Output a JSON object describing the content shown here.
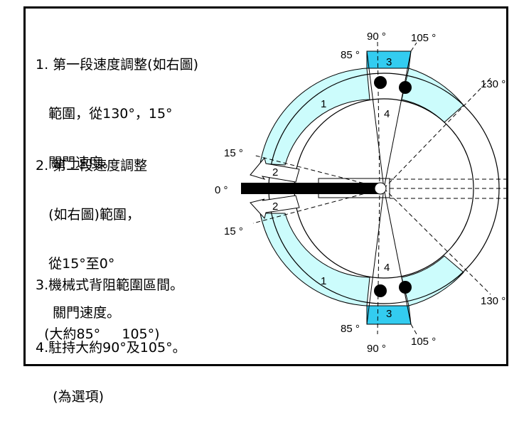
{
  "notes": [
    {
      "lines": [
        "1. 第一段速度調整(如右圖)",
        "   範圍，從130°，15°",
        "   關門速度。"
      ]
    },
    {
      "lines": [
        "2. 第二段速度調整",
        "   (如右圖)範圍，",
        "   從15°至0°",
        "    關門速度。"
      ]
    },
    {
      "lines": [
        "3.機械式背阻範圍區間。",
        "  (大約85°     105°)"
      ]
    },
    {
      "lines": [
        "4.駐持大約90°及105°。",
        "    (為選項)"
      ]
    }
  ],
  "diagram": {
    "angle_labels": {
      "top_90": "90 °",
      "top_105": "105 °",
      "top_85": "85 °",
      "upper_130": "130 °",
      "upper_15": "15 °",
      "zero": "0 °",
      "lower_15": "15 °",
      "lower_130": "130 °",
      "bottom_85": "85 °",
      "bottom_90": "90 °",
      "bottom_105": "105 °"
    },
    "zone_labels": {
      "upper_1": "1",
      "upper_3": "3",
      "upper_4": "4",
      "upper_2": "2",
      "lower_2": "2",
      "lower_1": "1",
      "lower_3": "3",
      "lower_4": "4"
    },
    "colors": {
      "zone1_fill": "#ccfcfc",
      "zone3_fill": "#33ccf0",
      "arm": "#000000"
    }
  }
}
